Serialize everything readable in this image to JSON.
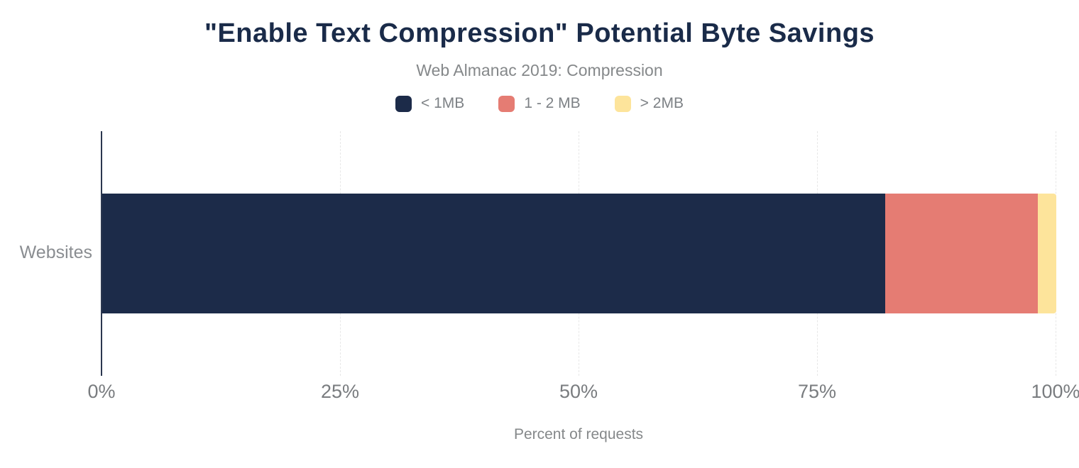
{
  "chart_data": {
    "type": "bar",
    "orientation": "horizontal",
    "stacked": true,
    "title": "\"Enable Text Compression\" Potential Byte Savings",
    "subtitle": "Web Almanac 2019: Compression",
    "xlabel": "Percent of requests",
    "categories": [
      "Websites"
    ],
    "series": [
      {
        "name": "< 1MB",
        "values": [
          82.1
        ],
        "color": "#1c2b49"
      },
      {
        "name": "1 - 2 MB",
        "values": [
          16.0
        ],
        "color": "#e57c73"
      },
      {
        "name": "> 2MB",
        "values": [
          1.9
        ],
        "color": "#fde49b"
      }
    ],
    "xlim": [
      0,
      100
    ],
    "xticks": [
      {
        "label": "0%",
        "value": 0
      },
      {
        "label": "25%",
        "value": 25
      },
      {
        "label": "50%",
        "value": 50
      },
      {
        "label": "75%",
        "value": 75
      },
      {
        "label": "100%",
        "value": 100
      }
    ],
    "grid": "vertical-dashed",
    "legend_position": "top"
  },
  "style": {
    "title_color": "#1a2b49",
    "subtitle_color": "#85888a",
    "tick_color": "#797c7f",
    "gridline_color": "#e7e7e7",
    "axis_line_color": "#2b374f",
    "background": "#ffffff"
  }
}
